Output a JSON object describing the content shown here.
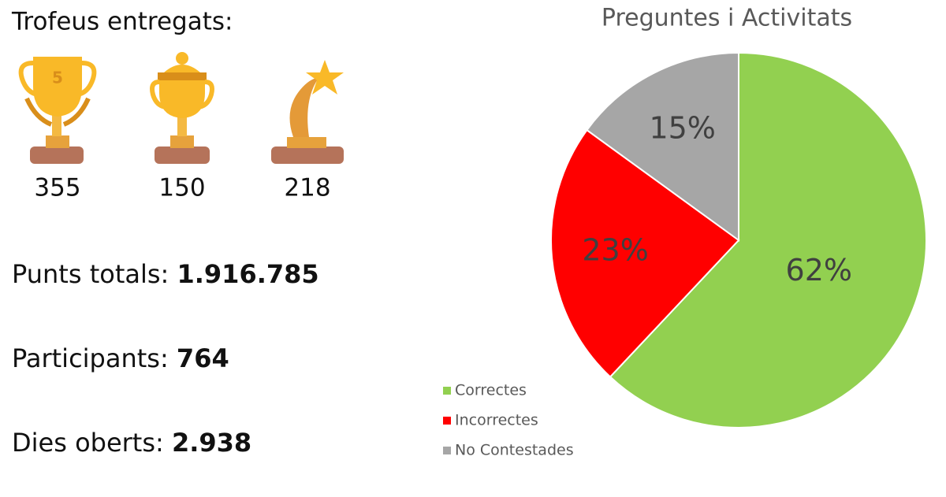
{
  "trophies": {
    "title": "Trofeus entregats:",
    "counts": [
      355,
      150,
      218
    ]
  },
  "stats": [
    {
      "label": "Punts totals:",
      "value": "1.916.785"
    },
    {
      "label": "Participants:",
      "value": "764"
    },
    {
      "label": "Dies oberts:",
      "value": "2.938"
    }
  ],
  "chart_data": {
    "type": "pie",
    "title": "Preguntes i Activitats",
    "categories": [
      "Correctes",
      "Incorrectes",
      "No Contestades"
    ],
    "values": [
      62,
      23,
      15
    ],
    "value_labels": [
      "62%",
      "23%",
      "15%"
    ],
    "colors": [
      "#92d050",
      "#ff0000",
      "#a6a6a6"
    ],
    "legend": "bottom-left"
  }
}
